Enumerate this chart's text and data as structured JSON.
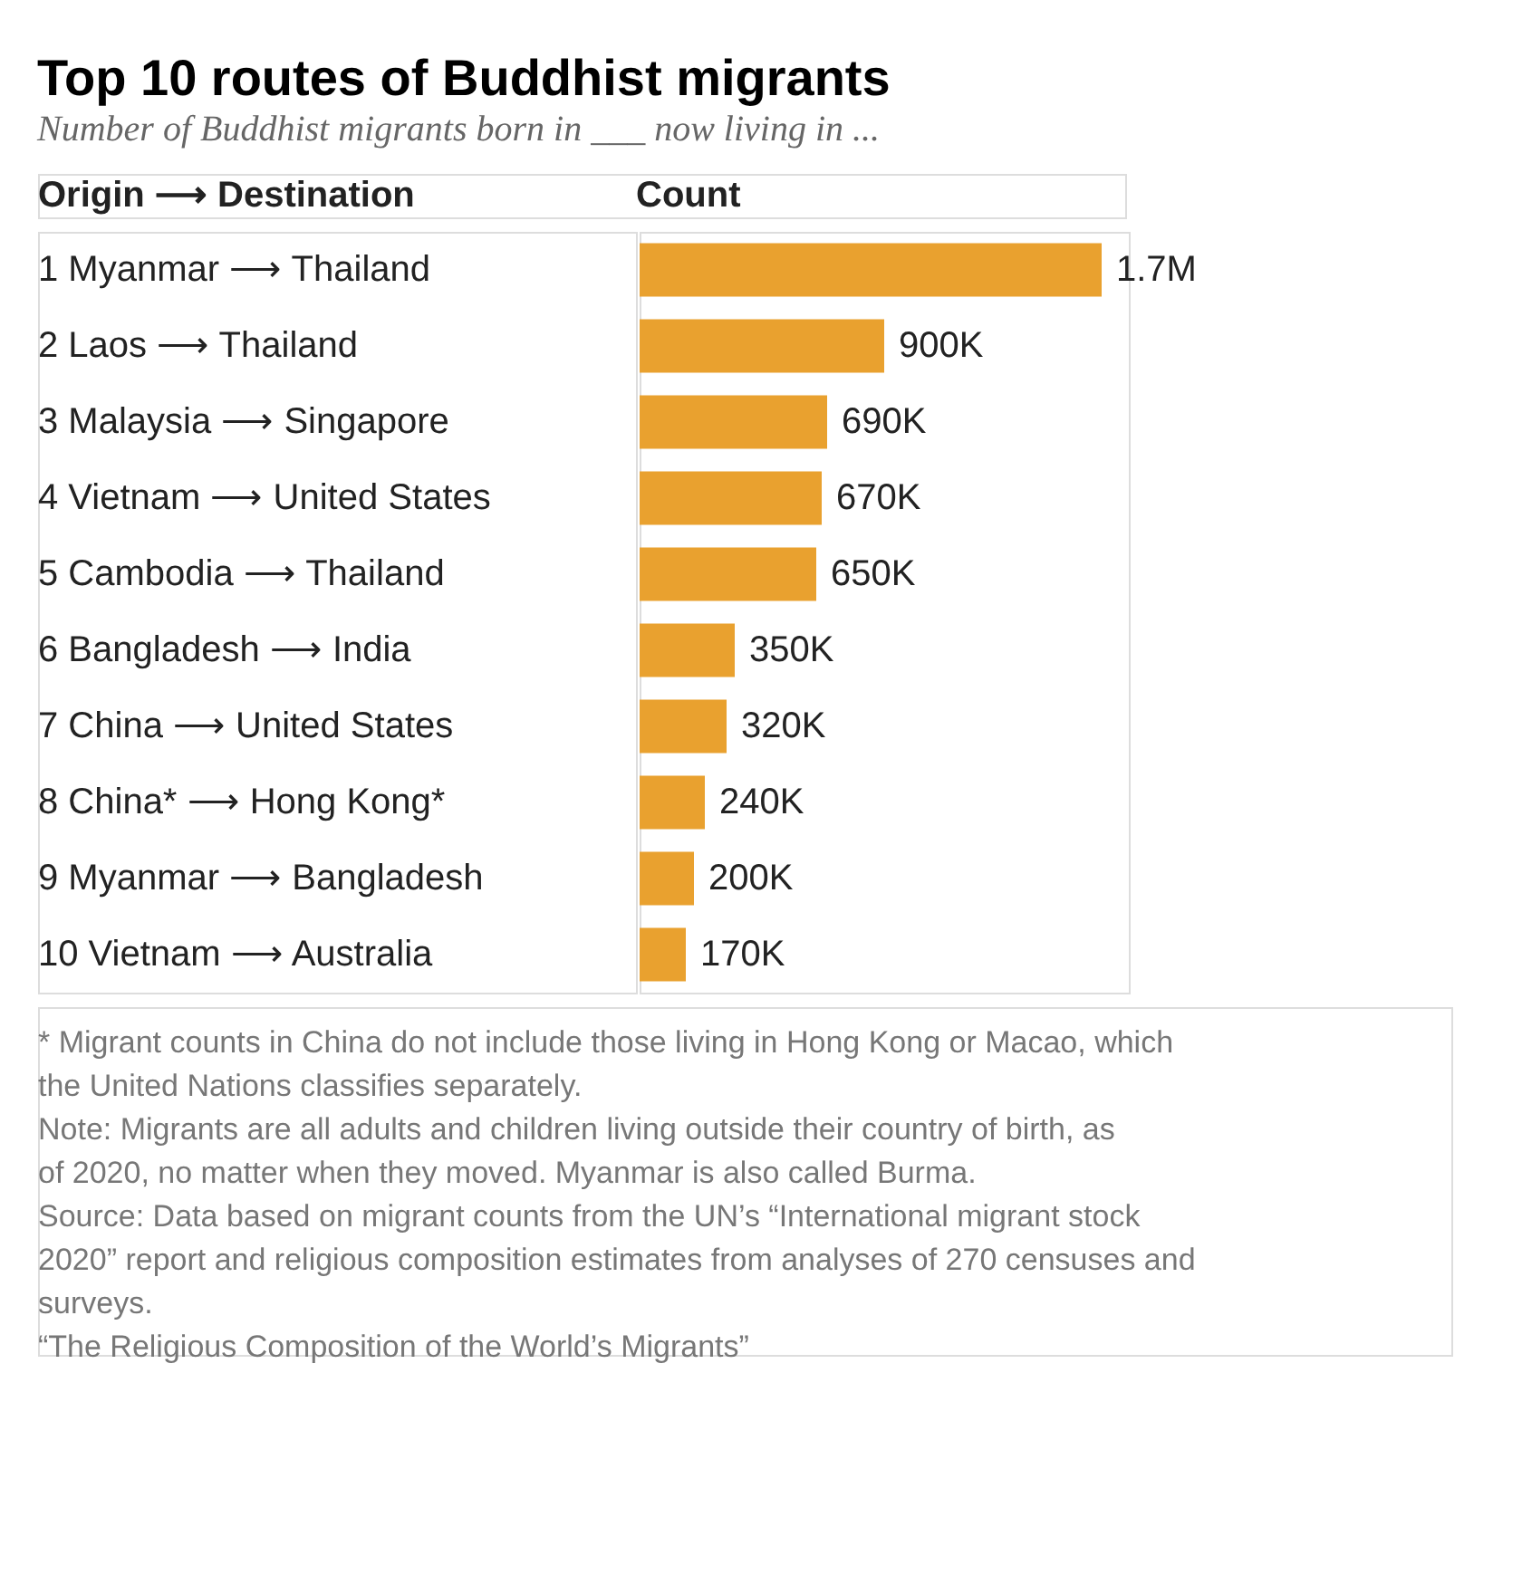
{
  "chart_data": {
    "type": "bar",
    "orientation": "horizontal",
    "title": "Top 10 routes of Buddhist migrants",
    "subtitle": "Number of Buddhist migrants born in ___ now living in ...",
    "categories": [
      "1  Myanmar ⟶ Thailand",
      "2  Laos ⟶ Thailand",
      "3  Malaysia ⟶ Singapore",
      "4  Vietnam ⟶ United States",
      "5  Cambodia ⟶ Thailand",
      "6  Bangladesh ⟶ India",
      "7  China ⟶ United States",
      "8  China* ⟶ Hong Kong*",
      "9  Myanmar ⟶ Bangladesh",
      "10  Vietnam ⟶ Australia"
    ],
    "values": [
      1700000,
      900000,
      690000,
      670000,
      650000,
      350000,
      320000,
      240000,
      200000,
      170000
    ],
    "value_labels": [
      "1.7M",
      "900K",
      "690K",
      "670K",
      "650K",
      "350K",
      "320K",
      "240K",
      "200K",
      "170K"
    ],
    "color": "#e9a12f",
    "annotations": [
      "Origin ⟶ Destination",
      "Count",
      "* Migrant counts in China do not include those living in Hong Kong or Macao, which the United Nations classifies separately.",
      "Note: Migrants are all adults and children living outside their country of birth, as of 2020, no matter when they moved. Myanmar is also called Burma.",
      "Source: Data based on migrant counts from the UN’s “International migrant stock 2020” report and religious composition estimates from analyses of 270 censuses and surveys.",
      "“The Religious Composition of the World’s Migrants”"
    ]
  }
}
